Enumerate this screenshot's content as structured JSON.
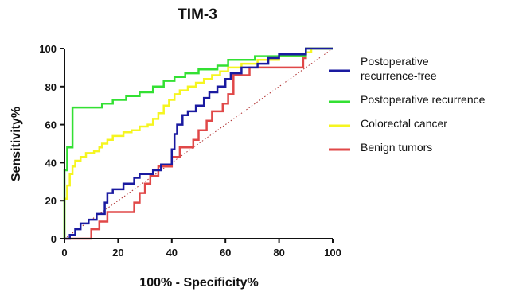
{
  "chart_data": {
    "type": "line",
    "title": "TIM-3",
    "xlabel": "100% - Specificity%",
    "ylabel": "Sensitivity%",
    "xlim": [
      0,
      100
    ],
    "ylim": [
      0,
      100
    ],
    "xticks": [
      0,
      20,
      40,
      60,
      80,
      100
    ],
    "yticks": [
      0,
      20,
      40,
      60,
      80,
      100
    ],
    "grid": false,
    "legend_position": "right",
    "reference_line": {
      "from": [
        0,
        0
      ],
      "to": [
        100,
        100
      ],
      "color": "#b03030",
      "style": "dotted"
    },
    "series": [
      {
        "name": "Postoperative\nrecurrence-free",
        "color": "#1a1aa0",
        "points": [
          [
            0,
            0
          ],
          [
            2,
            0
          ],
          [
            2,
            2
          ],
          [
            4,
            2
          ],
          [
            4,
            5
          ],
          [
            6,
            5
          ],
          [
            6,
            8
          ],
          [
            9,
            8
          ],
          [
            9,
            10
          ],
          [
            12,
            10
          ],
          [
            12,
            13
          ],
          [
            15,
            13
          ],
          [
            15,
            19
          ],
          [
            16,
            19
          ],
          [
            16,
            24
          ],
          [
            18,
            24
          ],
          [
            18,
            26
          ],
          [
            22,
            26
          ],
          [
            22,
            29
          ],
          [
            26,
            29
          ],
          [
            26,
            32
          ],
          [
            28,
            32
          ],
          [
            28,
            34
          ],
          [
            33,
            34
          ],
          [
            33,
            36
          ],
          [
            36,
            36
          ],
          [
            36,
            39
          ],
          [
            40,
            39
          ],
          [
            40,
            47
          ],
          [
            41,
            47
          ],
          [
            41,
            55
          ],
          [
            42,
            55
          ],
          [
            42,
            60
          ],
          [
            44,
            60
          ],
          [
            44,
            65
          ],
          [
            46,
            65
          ],
          [
            46,
            67
          ],
          [
            49,
            67
          ],
          [
            49,
            70
          ],
          [
            52,
            70
          ],
          [
            52,
            74
          ],
          [
            54,
            74
          ],
          [
            54,
            77
          ],
          [
            57,
            77
          ],
          [
            57,
            80
          ],
          [
            60,
            80
          ],
          [
            60,
            84
          ],
          [
            62,
            84
          ],
          [
            62,
            87
          ],
          [
            66,
            87
          ],
          [
            66,
            90
          ],
          [
            72,
            90
          ],
          [
            72,
            92
          ],
          [
            76,
            92
          ],
          [
            76,
            95
          ],
          [
            80,
            95
          ],
          [
            80,
            97
          ],
          [
            90,
            97
          ],
          [
            90,
            100
          ],
          [
            100,
            100
          ]
        ]
      },
      {
        "name": "Postoperative recurrence",
        "color": "#33e033",
        "points": [
          [
            0,
            0
          ],
          [
            0,
            36
          ],
          [
            1,
            36
          ],
          [
            1,
            48
          ],
          [
            3,
            48
          ],
          [
            3,
            69
          ],
          [
            14,
            69
          ],
          [
            14,
            71
          ],
          [
            18,
            71
          ],
          [
            18,
            73
          ],
          [
            23,
            73
          ],
          [
            23,
            75
          ],
          [
            28,
            75
          ],
          [
            28,
            77
          ],
          [
            33,
            77
          ],
          [
            33,
            80
          ],
          [
            37,
            80
          ],
          [
            37,
            83
          ],
          [
            41,
            83
          ],
          [
            41,
            85
          ],
          [
            45,
            85
          ],
          [
            45,
            87
          ],
          [
            50,
            87
          ],
          [
            50,
            89
          ],
          [
            57,
            89
          ],
          [
            57,
            91
          ],
          [
            61,
            91
          ],
          [
            61,
            94
          ],
          [
            71,
            94
          ],
          [
            71,
            96
          ],
          [
            90,
            96
          ],
          [
            90,
            100
          ],
          [
            100,
            100
          ]
        ]
      },
      {
        "name": "Colorectal cancer",
        "color": "#f5f520",
        "points": [
          [
            0,
            0
          ],
          [
            0,
            21
          ],
          [
            1,
            21
          ],
          [
            1,
            28
          ],
          [
            2,
            28
          ],
          [
            2,
            34
          ],
          [
            3,
            34
          ],
          [
            3,
            38
          ],
          [
            4,
            38
          ],
          [
            4,
            41
          ],
          [
            6,
            41
          ],
          [
            6,
            43
          ],
          [
            8,
            43
          ],
          [
            8,
            45
          ],
          [
            11,
            45
          ],
          [
            11,
            46
          ],
          [
            13,
            46
          ],
          [
            13,
            48
          ],
          [
            14,
            48
          ],
          [
            14,
            50
          ],
          [
            16,
            50
          ],
          [
            16,
            52
          ],
          [
            18,
            52
          ],
          [
            18,
            54
          ],
          [
            22,
            54
          ],
          [
            22,
            56
          ],
          [
            25,
            56
          ],
          [
            25,
            57
          ],
          [
            28,
            57
          ],
          [
            28,
            59
          ],
          [
            31,
            59
          ],
          [
            31,
            60
          ],
          [
            33,
            60
          ],
          [
            33,
            63
          ],
          [
            35,
            63
          ],
          [
            35,
            66
          ],
          [
            37,
            66
          ],
          [
            37,
            70
          ],
          [
            39,
            70
          ],
          [
            39,
            73
          ],
          [
            41,
            73
          ],
          [
            41,
            76
          ],
          [
            43,
            76
          ],
          [
            43,
            78
          ],
          [
            46,
            78
          ],
          [
            46,
            80
          ],
          [
            49,
            80
          ],
          [
            49,
            82
          ],
          [
            52,
            82
          ],
          [
            52,
            84
          ],
          [
            55,
            84
          ],
          [
            55,
            86
          ],
          [
            58,
            86
          ],
          [
            58,
            88
          ],
          [
            61,
            88
          ],
          [
            61,
            90
          ],
          [
            66,
            90
          ],
          [
            66,
            92
          ],
          [
            72,
            92
          ],
          [
            72,
            94
          ],
          [
            80,
            94
          ],
          [
            80,
            96
          ],
          [
            90,
            96
          ],
          [
            90,
            98
          ],
          [
            92,
            98
          ],
          [
            92,
            100
          ],
          [
            100,
            100
          ]
        ]
      },
      {
        "name": "Benign tumors",
        "color": "#e04848",
        "points": [
          [
            0,
            0
          ],
          [
            10,
            0
          ],
          [
            10,
            5
          ],
          [
            13,
            5
          ],
          [
            13,
            9
          ],
          [
            16,
            9
          ],
          [
            16,
            14
          ],
          [
            26,
            14
          ],
          [
            26,
            19
          ],
          [
            28,
            19
          ],
          [
            28,
            24
          ],
          [
            30,
            24
          ],
          [
            30,
            29
          ],
          [
            32,
            29
          ],
          [
            32,
            33
          ],
          [
            35,
            33
          ],
          [
            35,
            38
          ],
          [
            40,
            38
          ],
          [
            40,
            43
          ],
          [
            43,
            43
          ],
          [
            43,
            48
          ],
          [
            48,
            48
          ],
          [
            48,
            52
          ],
          [
            50,
            52
          ],
          [
            50,
            57
          ],
          [
            53,
            57
          ],
          [
            53,
            62
          ],
          [
            55,
            62
          ],
          [
            55,
            67
          ],
          [
            59,
            67
          ],
          [
            59,
            71
          ],
          [
            61,
            71
          ],
          [
            61,
            76
          ],
          [
            63,
            76
          ],
          [
            63,
            86
          ],
          [
            69,
            86
          ],
          [
            69,
            90
          ],
          [
            89,
            90
          ],
          [
            89,
            95
          ],
          [
            90,
            95
          ],
          [
            90,
            100
          ],
          [
            100,
            100
          ]
        ]
      }
    ]
  }
}
